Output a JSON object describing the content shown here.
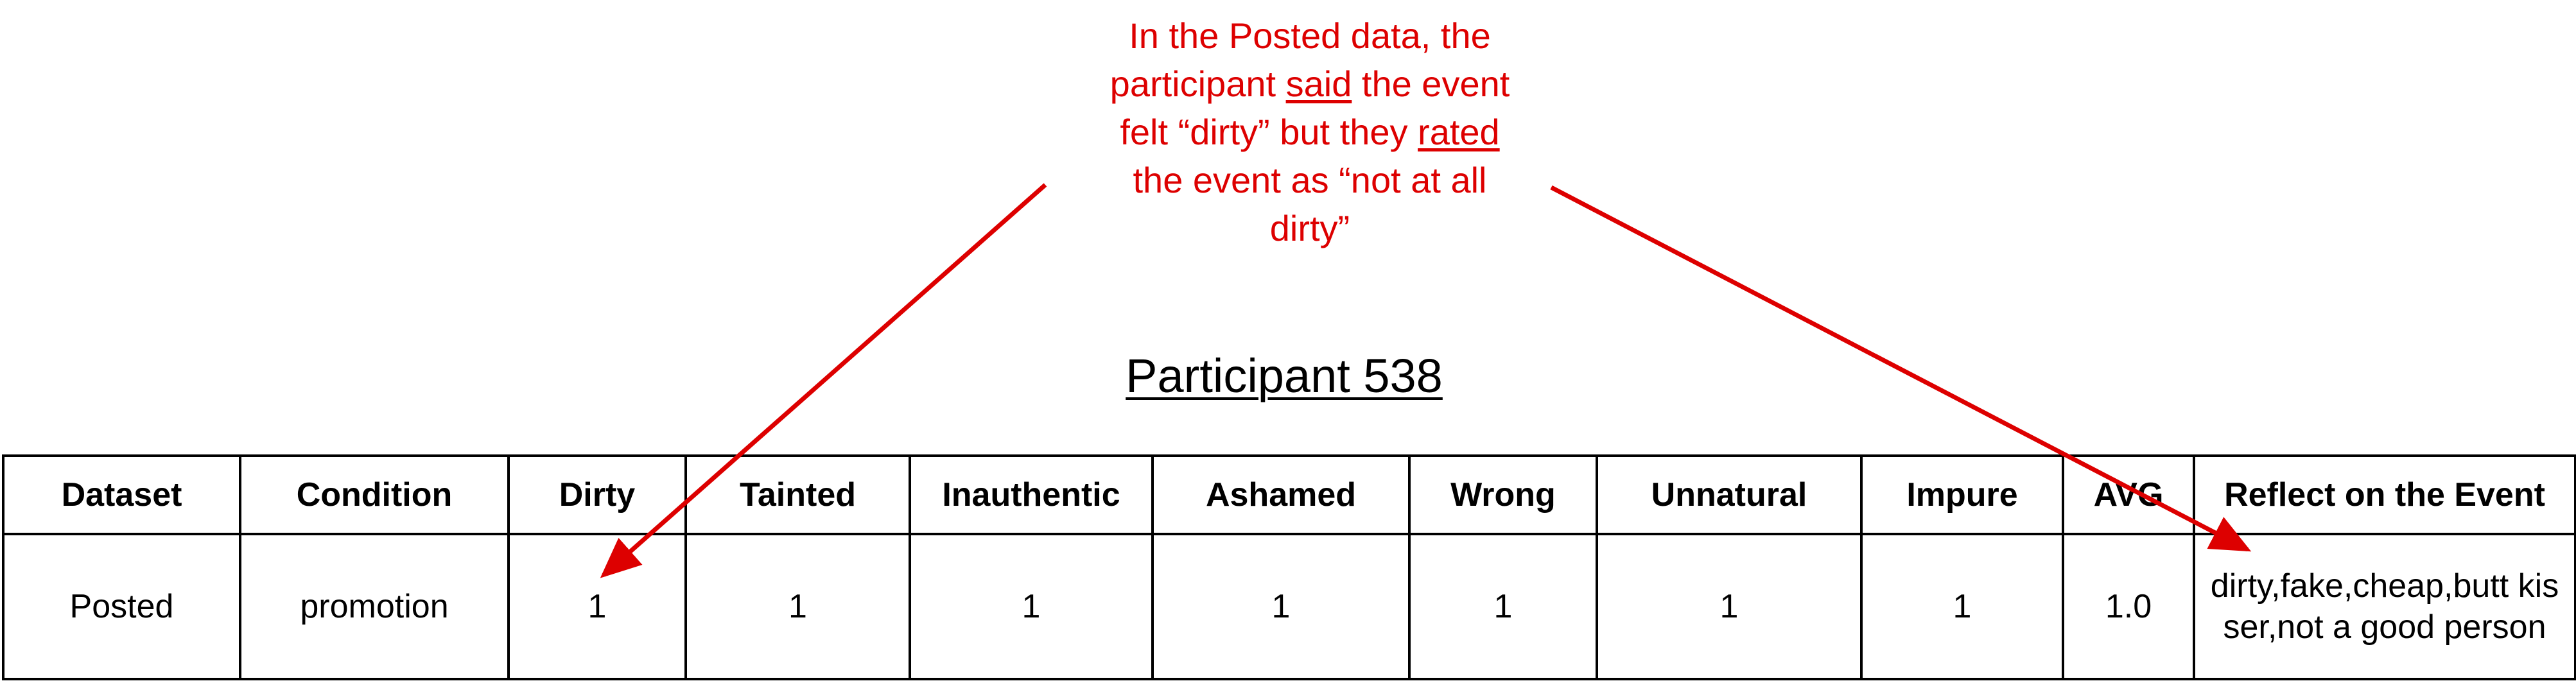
{
  "annotation": {
    "lines": [
      [
        "In the Posted data, the"
      ],
      [
        "participant ",
        "said",
        " the event"
      ],
      [
        "felt “dirty” but they ",
        "rated"
      ],
      [
        "the event as “not at all"
      ],
      [
        "dirty”"
      ]
    ],
    "color": "#dd0000"
  },
  "title": "Participant 538",
  "table": {
    "headers": [
      "Dataset",
      "Condition",
      "Dirty",
      "Tainted",
      "Inauthentic",
      "Ashamed",
      "Wrong",
      "Unnatural",
      "Impure",
      "AVG",
      "Reflect on the Event"
    ],
    "rows": [
      [
        "Posted",
        "promotion",
        "1",
        "1",
        "1",
        "1",
        "1",
        "1",
        "1",
        "1.0",
        "dirty,fake,cheap,butt kisser,not a good person"
      ]
    ]
  },
  "arrows": [
    {
      "from": "annotation",
      "to": "Dirty"
    },
    {
      "from": "annotation",
      "to": "Reflect on the Event"
    }
  ]
}
